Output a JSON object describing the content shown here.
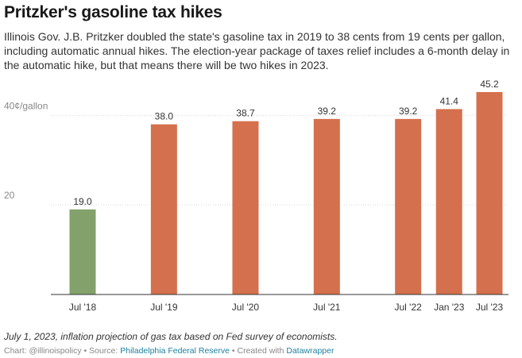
{
  "title": "Pritzker's gasoline tax hikes",
  "subtitle": "Illinois Gov. J.B. Pritzker doubled the state's gasoline tax in 2019 to 38 cents from 19 cents per gallon, including automatic annual hikes. The election-year package of taxes relief includes a 6-month delay in the automatic hike, but that means there will be two hikes in 2023.",
  "notes": "July 1, 2023, inflation projection of gas tax based on Fed survey of economists.",
  "byline": {
    "chart_prefix": "Chart: @illinoispolicy",
    "sep1": " • Source: ",
    "source": "Philadelphia Federal Reserve",
    "sep2": " • Created with ",
    "tool": "Datawrapper"
  },
  "colors": {
    "first_bar": "#83a26b",
    "bars": "#d4704d",
    "gridline": "#d9d9d9",
    "baseline": "#333333",
    "axis_text": "#888888"
  },
  "chart_data": {
    "type": "bar",
    "categories": [
      "Jul '18",
      "Jul '19",
      "Jul '20",
      "Jul '21",
      "Jul '22",
      "Jan '23",
      "Jul '23"
    ],
    "x_dates": [
      "2018-07-01",
      "2019-07-01",
      "2020-07-01",
      "2021-07-01",
      "2022-07-01",
      "2023-01-01",
      "2023-07-01"
    ],
    "values": [
      19.0,
      38.0,
      38.7,
      39.2,
      39.2,
      41.4,
      45.2
    ],
    "value_labels": [
      "19.0",
      "38.0",
      "38.7",
      "39.2",
      "39.2",
      "41.4",
      "45.2"
    ],
    "y_ticks": [
      {
        "value": 20,
        "label": "20"
      },
      {
        "value": 40,
        "label": "40¢/gallon"
      }
    ],
    "ylim": [
      0,
      45.2
    ],
    "grid": true,
    "xlabel": "",
    "ylabel": ""
  }
}
